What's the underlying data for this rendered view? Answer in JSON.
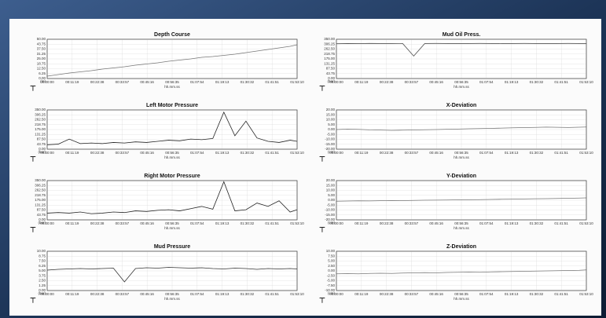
{
  "chart_data": [
    {
      "type": "line",
      "title": "Depth Course",
      "y_unit": "(m)",
      "xlabel": "hh.mm.ss",
      "color": "#777777",
      "x": [
        0,
        300,
        600,
        900,
        1200,
        1500,
        1800,
        2100,
        2400,
        2700,
        3000,
        3300,
        3600,
        3900,
        4200,
        4500,
        4800,
        5100,
        5400,
        5700,
        6000,
        6300,
        6600,
        6790
      ],
      "values": [
        3,
        5,
        7,
        8.5,
        10,
        12,
        13.5,
        15,
        17,
        18.5,
        20,
        22,
        23.5,
        25,
        27,
        28,
        29.5,
        31,
        33,
        35,
        37,
        39,
        41,
        43
      ],
      "xlim": [
        0,
        6790
      ],
      "ylim": [
        0,
        50
      ],
      "yticks": [
        {
          "value": 50,
          "label": "50.00"
        },
        {
          "value": 43.75,
          "label": "43.75"
        },
        {
          "value": 37.5,
          "label": "37.50"
        },
        {
          "value": 31.25,
          "label": "31.25"
        },
        {
          "value": 25,
          "label": "25.00"
        },
        {
          "value": 18.75,
          "label": "18.75"
        },
        {
          "value": 12.5,
          "label": "12.50"
        },
        {
          "value": 6.25,
          "label": "6.25"
        },
        {
          "value": 0,
          "label": "0.00"
        }
      ],
      "xticks": [
        {
          "value": 0,
          "label": "00:00:00"
        },
        {
          "value": 679,
          "label": "00:11:19"
        },
        {
          "value": 1358,
          "label": "00:22:38"
        },
        {
          "value": 2037,
          "label": "00:33:57"
        },
        {
          "value": 2716,
          "label": "00:45:16"
        },
        {
          "value": 3395,
          "label": "00:56:35"
        },
        {
          "value": 4074,
          "label": "01:07:54"
        },
        {
          "value": 4753,
          "label": "01:19:13"
        },
        {
          "value": 5432,
          "label": "01:30:32"
        },
        {
          "value": 6111,
          "label": "01:41:51"
        },
        {
          "value": 6790,
          "label": "01:53:10"
        }
      ],
      "grid": true
    },
    {
      "type": "line",
      "title": "Mud Oil Press.",
      "y_unit": "(bar)",
      "xlabel": "hh.mm.ss",
      "color": "#555555",
      "x": [
        0,
        300,
        600,
        900,
        1200,
        1500,
        1800,
        2100,
        2400,
        2700,
        3000,
        3300,
        3600,
        3900,
        4200,
        4500,
        4800,
        5100,
        5400,
        5700,
        6000,
        6300,
        6600,
        6790
      ],
      "values": [
        310,
        312,
        311,
        313,
        312,
        311,
        312,
        200,
        312,
        313,
        312,
        311,
        312,
        313,
        312,
        311,
        312,
        313,
        312,
        311,
        312,
        313,
        312,
        312
      ],
      "xlim": [
        0,
        6790
      ],
      "ylim": [
        0,
        350
      ],
      "yticks": [
        {
          "value": 350,
          "label": "350.00"
        },
        {
          "value": 306.25,
          "label": "306.25"
        },
        {
          "value": 262.5,
          "label": "262.50"
        },
        {
          "value": 218.75,
          "label": "218.75"
        },
        {
          "value": 175,
          "label": "175.00"
        },
        {
          "value": 131.25,
          "label": "131.25"
        },
        {
          "value": 87.5,
          "label": "87.50"
        },
        {
          "value": 43.75,
          "label": "43.75"
        },
        {
          "value": 0,
          "label": "0.00"
        }
      ],
      "xticks": [
        {
          "value": 0,
          "label": "00:00:00"
        },
        {
          "value": 679,
          "label": "00:11:19"
        },
        {
          "value": 1358,
          "label": "00:22:38"
        },
        {
          "value": 2037,
          "label": "00:33:57"
        },
        {
          "value": 2716,
          "label": "00:45:16"
        },
        {
          "value": 3395,
          "label": "00:56:35"
        },
        {
          "value": 4074,
          "label": "01:07:54"
        },
        {
          "value": 4753,
          "label": "01:19:13"
        },
        {
          "value": 5432,
          "label": "01:30:32"
        },
        {
          "value": 6111,
          "label": "01:41:51"
        },
        {
          "value": 6790,
          "label": "01:53:10"
        }
      ],
      "grid": true
    },
    {
      "type": "line",
      "title": "Left Motor Pressure",
      "y_unit": "(bar)",
      "xlabel": "hh.mm.ss",
      "color": "#222222",
      "x": [
        0,
        300,
        600,
        900,
        1200,
        1500,
        1800,
        2100,
        2400,
        2700,
        3000,
        3300,
        3600,
        3900,
        4200,
        4500,
        4800,
        5100,
        5400,
        5700,
        6000,
        6300,
        6600,
        6790
      ],
      "values": [
        40,
        45,
        90,
        50,
        55,
        50,
        60,
        55,
        65,
        60,
        70,
        80,
        75,
        90,
        85,
        95,
        330,
        120,
        250,
        100,
        70,
        60,
        80,
        70
      ],
      "xlim": [
        0,
        6790
      ],
      "ylim": [
        0,
        350
      ],
      "yticks": [
        {
          "value": 350,
          "label": "350.00"
        },
        {
          "value": 306.25,
          "label": "306.25"
        },
        {
          "value": 262.5,
          "label": "262.50"
        },
        {
          "value": 218.75,
          "label": "218.75"
        },
        {
          "value": 175,
          "label": "175.00"
        },
        {
          "value": 131.25,
          "label": "131.25"
        },
        {
          "value": 87.5,
          "label": "87.50"
        },
        {
          "value": 43.75,
          "label": "43.75"
        },
        {
          "value": 0,
          "label": "0.00"
        }
      ],
      "xticks": [
        {
          "value": 0,
          "label": "00:00:00"
        },
        {
          "value": 679,
          "label": "00:11:19"
        },
        {
          "value": 1358,
          "label": "00:22:38"
        },
        {
          "value": 2037,
          "label": "00:33:57"
        },
        {
          "value": 2716,
          "label": "00:45:16"
        },
        {
          "value": 3395,
          "label": "00:56:35"
        },
        {
          "value": 4074,
          "label": "01:07:54"
        },
        {
          "value": 4753,
          "label": "01:19:13"
        },
        {
          "value": 5432,
          "label": "01:30:32"
        },
        {
          "value": 6111,
          "label": "01:41:51"
        },
        {
          "value": 6790,
          "label": "01:53:10"
        }
      ],
      "grid": true
    },
    {
      "type": "line",
      "title": "X-Deviation",
      "y_unit": "(cm)",
      "xlabel": "hh.mm.ss",
      "color": "#777777",
      "x": [
        0,
        300,
        600,
        900,
        1200,
        1500,
        1800,
        2100,
        2400,
        2700,
        3000,
        3300,
        3600,
        3900,
        4200,
        4500,
        4800,
        5100,
        5400,
        5700,
        6000,
        6300,
        6600,
        6790
      ],
      "values": [
        0,
        0.5,
        0.2,
        -0.3,
        -0.5,
        -0.8,
        -0.6,
        -0.4,
        -0.2,
        0,
        0.3,
        0.5,
        0.8,
        1,
        1.2,
        1.5,
        1.8,
        2,
        2.2,
        2.5,
        2.3,
        2.1,
        2.4,
        2.6
      ],
      "xlim": [
        0,
        6790
      ],
      "ylim": [
        -20,
        20
      ],
      "yticks": [
        {
          "value": 20,
          "label": "20.00"
        },
        {
          "value": 15,
          "label": "15.00"
        },
        {
          "value": 10,
          "label": "10.00"
        },
        {
          "value": 5,
          "label": "5.00"
        },
        {
          "value": 0,
          "label": "0.00"
        },
        {
          "value": -5,
          "label": "-5.00"
        },
        {
          "value": -10,
          "label": "-10.00"
        },
        {
          "value": -15,
          "label": "-15.00"
        },
        {
          "value": -20,
          "label": "-20.00"
        }
      ],
      "xticks": [
        {
          "value": 0,
          "label": "00:00:00"
        },
        {
          "value": 679,
          "label": "00:11:19"
        },
        {
          "value": 1358,
          "label": "00:22:38"
        },
        {
          "value": 2037,
          "label": "00:33:57"
        },
        {
          "value": 2716,
          "label": "00:45:16"
        },
        {
          "value": 3395,
          "label": "00:56:35"
        },
        {
          "value": 4074,
          "label": "01:07:54"
        },
        {
          "value": 4753,
          "label": "01:19:13"
        },
        {
          "value": 5432,
          "label": "01:30:32"
        },
        {
          "value": 6111,
          "label": "01:41:51"
        },
        {
          "value": 6790,
          "label": "01:53:10"
        }
      ],
      "grid": true
    },
    {
      "type": "line",
      "title": "Right Motor Pressure",
      "y_unit": "(bar)",
      "xlabel": "hh.mm.ss",
      "color": "#222222",
      "x": [
        0,
        300,
        600,
        900,
        1200,
        1500,
        1800,
        2100,
        2400,
        2700,
        3000,
        3300,
        3600,
        3900,
        4200,
        4500,
        4800,
        5100,
        5400,
        5700,
        6000,
        6300,
        6600,
        6790
      ],
      "values": [
        60,
        65,
        60,
        70,
        55,
        60,
        70,
        65,
        80,
        75,
        85,
        90,
        80,
        100,
        120,
        95,
        340,
        80,
        90,
        150,
        120,
        170,
        70,
        90
      ],
      "xlim": [
        0,
        6790
      ],
      "ylim": [
        0,
        350
      ],
      "yticks": [
        {
          "value": 350,
          "label": "350.00"
        },
        {
          "value": 306.25,
          "label": "306.25"
        },
        {
          "value": 262.5,
          "label": "262.50"
        },
        {
          "value": 218.75,
          "label": "218.75"
        },
        {
          "value": 175,
          "label": "175.00"
        },
        {
          "value": 131.25,
          "label": "131.25"
        },
        {
          "value": 87.5,
          "label": "87.50"
        },
        {
          "value": 43.75,
          "label": "43.75"
        },
        {
          "value": 0,
          "label": "0.00"
        }
      ],
      "xticks": [
        {
          "value": 0,
          "label": "00:00:00"
        },
        {
          "value": 679,
          "label": "00:11:19"
        },
        {
          "value": 1358,
          "label": "00:22:38"
        },
        {
          "value": 2037,
          "label": "00:33:57"
        },
        {
          "value": 2716,
          "label": "00:45:16"
        },
        {
          "value": 3395,
          "label": "00:56:35"
        },
        {
          "value": 4074,
          "label": "01:07:54"
        },
        {
          "value": 4753,
          "label": "01:19:13"
        },
        {
          "value": 5432,
          "label": "01:30:32"
        },
        {
          "value": 6111,
          "label": "01:41:51"
        },
        {
          "value": 6790,
          "label": "01:53:10"
        }
      ],
      "grid": true
    },
    {
      "type": "line",
      "title": "Y-Deviation",
      "y_unit": "(cm)",
      "xlabel": "hh.mm.ss",
      "color": "#777777",
      "x": [
        0,
        300,
        600,
        900,
        1200,
        1500,
        1800,
        2100,
        2400,
        2700,
        3000,
        3300,
        3600,
        3900,
        4200,
        4500,
        4800,
        5100,
        5400,
        5700,
        6000,
        6300,
        6600,
        6790
      ],
      "values": [
        -1,
        -0.8,
        -0.6,
        -0.7,
        -0.5,
        -0.3,
        -0.4,
        -0.2,
        0,
        0.1,
        0.2,
        0.4,
        0.5,
        0.6,
        0.8,
        1,
        1.1,
        1.3,
        1.5,
        1.6,
        1.8,
        2,
        2.2,
        2.4
      ],
      "xlim": [
        0,
        6790
      ],
      "ylim": [
        -20,
        20
      ],
      "yticks": [
        {
          "value": 20,
          "label": "20.00"
        },
        {
          "value": 15,
          "label": "15.00"
        },
        {
          "value": 10,
          "label": "10.00"
        },
        {
          "value": 5,
          "label": "5.00"
        },
        {
          "value": 0,
          "label": "0.00"
        },
        {
          "value": -5,
          "label": "-5.00"
        },
        {
          "value": -10,
          "label": "-10.00"
        },
        {
          "value": -15,
          "label": "-15.00"
        },
        {
          "value": -20,
          "label": "-20.00"
        }
      ],
      "xticks": [
        {
          "value": 0,
          "label": "00:00:00"
        },
        {
          "value": 679,
          "label": "00:11:19"
        },
        {
          "value": 1358,
          "label": "00:22:38"
        },
        {
          "value": 2037,
          "label": "00:33:57"
        },
        {
          "value": 2716,
          "label": "00:45:16"
        },
        {
          "value": 3395,
          "label": "00:56:35"
        },
        {
          "value": 4074,
          "label": "01:07:54"
        },
        {
          "value": 4753,
          "label": "01:19:13"
        },
        {
          "value": 5432,
          "label": "01:30:32"
        },
        {
          "value": 6111,
          "label": "01:41:51"
        },
        {
          "value": 6790,
          "label": "01:53:10"
        }
      ],
      "grid": true
    },
    {
      "type": "line",
      "title": "Mud Pressure",
      "y_unit": "(bar)",
      "xlabel": "hh.mm.ss",
      "color": "#333333",
      "x": [
        0,
        300,
        600,
        900,
        1200,
        1500,
        1800,
        2100,
        2400,
        2700,
        3000,
        3300,
        3600,
        3900,
        4200,
        4500,
        4800,
        5100,
        5400,
        5700,
        6000,
        6300,
        6600,
        6790
      ],
      "values": [
        5.2,
        5.4,
        5.5,
        5.6,
        5.5,
        5.6,
        5.7,
        2.2,
        5.6,
        5.8,
        5.7,
        5.9,
        5.8,
        5.7,
        5.8,
        5.6,
        5.5,
        5.7,
        5.6,
        5.4,
        5.6,
        5.5,
        5.6,
        5.5
      ],
      "xlim": [
        0,
        6790
      ],
      "ylim": [
        0,
        10
      ],
      "yticks": [
        {
          "value": 10,
          "label": "10.00"
        },
        {
          "value": 8.75,
          "label": "8.75"
        },
        {
          "value": 7.5,
          "label": "7.50"
        },
        {
          "value": 6.25,
          "label": "6.25"
        },
        {
          "value": 5,
          "label": "5.00"
        },
        {
          "value": 3.75,
          "label": "3.75"
        },
        {
          "value": 2.5,
          "label": "2.50"
        },
        {
          "value": 1.25,
          "label": "1.25"
        },
        {
          "value": 0,
          "label": "0.00"
        }
      ],
      "xticks": [
        {
          "value": 0,
          "label": "00:00:00"
        },
        {
          "value": 679,
          "label": "00:11:19"
        },
        {
          "value": 1358,
          "label": "00:22:38"
        },
        {
          "value": 2037,
          "label": "00:33:57"
        },
        {
          "value": 2716,
          "label": "00:45:16"
        },
        {
          "value": 3395,
          "label": "00:56:35"
        },
        {
          "value": 4074,
          "label": "01:07:54"
        },
        {
          "value": 4753,
          "label": "01:19:13"
        },
        {
          "value": 5432,
          "label": "01:30:32"
        },
        {
          "value": 6111,
          "label": "01:41:51"
        },
        {
          "value": 6790,
          "label": "01:53:10"
        }
      ],
      "grid": true
    },
    {
      "type": "line",
      "title": "Z-Deviation",
      "y_unit": "(cm)",
      "xlabel": "hh.mm.ss",
      "color": "#777777",
      "x": [
        0,
        300,
        600,
        900,
        1200,
        1500,
        1800,
        2100,
        2400,
        2700,
        3000,
        3300,
        3600,
        3900,
        4200,
        4500,
        4800,
        5100,
        5400,
        5700,
        6000,
        6300,
        6600,
        6790
      ],
      "values": [
        -1.5,
        -1.4,
        -1.5,
        -1.3,
        -1.2,
        -1.3,
        -1.1,
        -1,
        -0.9,
        -1,
        -0.8,
        -0.7,
        -0.6,
        -0.7,
        -0.5,
        -0.4,
        -0.3,
        -0.2,
        -0.1,
        0,
        0.1,
        0.2,
        0.3,
        0.5
      ],
      "xlim": [
        0,
        6790
      ],
      "ylim": [
        -10,
        10
      ],
      "yticks": [
        {
          "value": 10,
          "label": "10.00"
        },
        {
          "value": 7.5,
          "label": "7.50"
        },
        {
          "value": 5,
          "label": "5.00"
        },
        {
          "value": 2.5,
          "label": "2.50"
        },
        {
          "value": 0,
          "label": "0.00"
        },
        {
          "value": -2.5,
          "label": "-2.50"
        },
        {
          "value": -5,
          "label": "-5.00"
        },
        {
          "value": -7.5,
          "label": "-7.50"
        },
        {
          "value": -10,
          "label": "-10.00"
        }
      ],
      "xticks": [
        {
          "value": 0,
          "label": "00:00:00"
        },
        {
          "value": 679,
          "label": "00:11:19"
        },
        {
          "value": 1358,
          "label": "00:22:38"
        },
        {
          "value": 2037,
          "label": "00:33:57"
        },
        {
          "value": 2716,
          "label": "00:45:16"
        },
        {
          "value": 3395,
          "label": "00:56:35"
        },
        {
          "value": 4074,
          "label": "01:07:54"
        },
        {
          "value": 4753,
          "label": "01:19:13"
        },
        {
          "value": 5432,
          "label": "01:30:32"
        },
        {
          "value": 6111,
          "label": "01:41:51"
        },
        {
          "value": 6790,
          "label": "01:53:10"
        }
      ],
      "grid": true
    }
  ]
}
